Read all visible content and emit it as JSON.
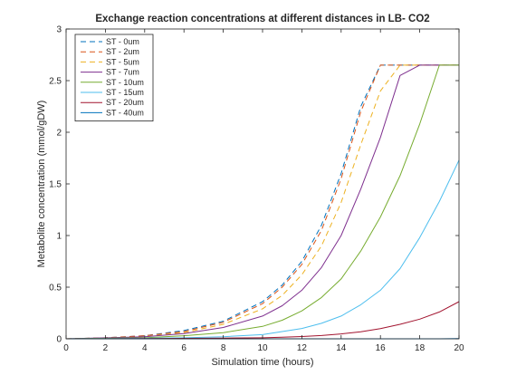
{
  "chart_data": {
    "type": "line",
    "title": "Exchange reaction concentrations at different distances in LB- CO2",
    "xlabel": "Simulation time (hours)",
    "ylabel": "Metabolite concentration (mmol/gDW)",
    "xlim": [
      0,
      20
    ],
    "ylim": [
      0,
      3
    ],
    "xticks": [
      "0",
      "2",
      "4",
      "6",
      "8",
      "10",
      "12",
      "14",
      "16",
      "18",
      "20"
    ],
    "yticks": [
      "0",
      "0.5",
      "1",
      "1.5",
      "2",
      "2.5",
      "3"
    ],
    "grid": false,
    "legend_position": "top-left",
    "x": [
      0,
      2,
      4,
      6,
      8,
      10,
      11,
      12,
      13,
      14,
      15,
      16,
      17,
      18,
      19,
      20
    ],
    "series": [
      {
        "name": "ST - 0um",
        "color": "#0072BD",
        "dash": "dashed",
        "values": [
          0,
          0.01,
          0.03,
          0.08,
          0.17,
          0.36,
          0.52,
          0.75,
          1.1,
          1.6,
          2.25,
          2.65,
          2.65,
          2.65,
          2.65,
          2.65
        ]
      },
      {
        "name": "ST - 2um",
        "color": "#D95319",
        "dash": "dashed",
        "values": [
          0,
          0.01,
          0.03,
          0.07,
          0.16,
          0.34,
          0.5,
          0.72,
          1.05,
          1.55,
          2.2,
          2.65,
          2.65,
          2.65,
          2.65,
          2.65
        ]
      },
      {
        "name": "ST - 5um",
        "color": "#EDB120",
        "dash": "dashed",
        "values": [
          0,
          0.01,
          0.02,
          0.06,
          0.14,
          0.29,
          0.42,
          0.62,
          0.9,
          1.32,
          1.88,
          2.4,
          2.65,
          2.65,
          2.65,
          2.65
        ]
      },
      {
        "name": "ST - 7um",
        "color": "#7E2F8E",
        "dash": "solid",
        "values": [
          0,
          0.01,
          0.02,
          0.05,
          0.11,
          0.22,
          0.32,
          0.47,
          0.69,
          1.0,
          1.45,
          1.95,
          2.55,
          2.65,
          2.65,
          2.65
        ]
      },
      {
        "name": "ST - 10um",
        "color": "#77AC30",
        "dash": "solid",
        "values": [
          0,
          0.005,
          0.01,
          0.03,
          0.06,
          0.12,
          0.18,
          0.27,
          0.4,
          0.58,
          0.85,
          1.18,
          1.58,
          2.08,
          2.65,
          2.65
        ]
      },
      {
        "name": "ST - 15um",
        "color": "#4DBEEE",
        "dash": "solid",
        "values": [
          0,
          0.002,
          0.005,
          0.01,
          0.02,
          0.04,
          0.07,
          0.1,
          0.15,
          0.22,
          0.33,
          0.47,
          0.68,
          0.98,
          1.33,
          1.73
        ]
      },
      {
        "name": "ST - 20um",
        "color": "#A2142F",
        "dash": "solid",
        "values": [
          0,
          0.001,
          0.002,
          0.004,
          0.007,
          0.01,
          0.015,
          0.022,
          0.032,
          0.047,
          0.068,
          0.098,
          0.14,
          0.19,
          0.26,
          0.36
        ]
      },
      {
        "name": "ST - 40um",
        "color": "#0072BD",
        "dash": "solid",
        "values": [
          0,
          0,
          0,
          0,
          0,
          0,
          0,
          0,
          0,
          0,
          0,
          0,
          0,
          0,
          0,
          0.002
        ]
      }
    ]
  }
}
